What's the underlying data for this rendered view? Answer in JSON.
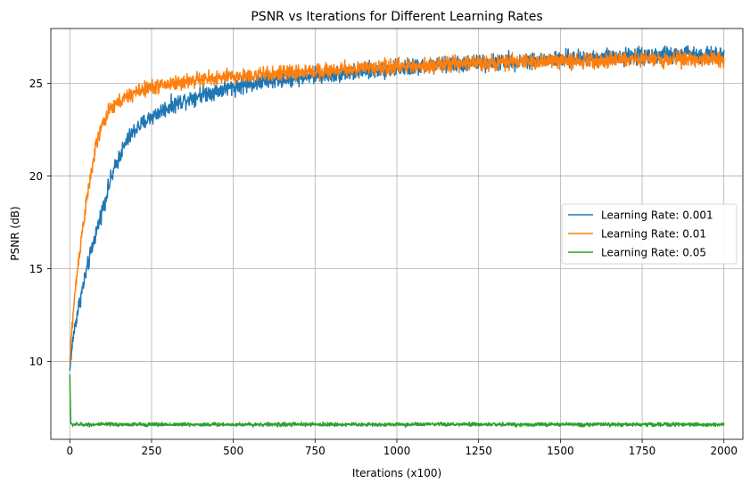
{
  "chart_data": {
    "type": "line",
    "title": "PSNR vs Iterations for Different Learning Rates",
    "xlabel": "Iterations (x100)",
    "ylabel": "PSNR (dB)",
    "xlim": [
      -58,
      2058
    ],
    "ylim": [
      5.8,
      27.95
    ],
    "xticks": [
      0,
      250,
      500,
      750,
      1000,
      1250,
      1500,
      1750,
      2000
    ],
    "yticks": [
      10,
      15,
      20,
      25
    ],
    "grid": true,
    "legend_position": "center-right",
    "series": [
      {
        "name": "Learning Rate: 0.001",
        "color": "#1f77b4",
        "points": [
          [
            0,
            9.5
          ],
          [
            10,
            11.3
          ],
          [
            25,
            12.8
          ],
          [
            50,
            14.8
          ],
          [
            75,
            16.6
          ],
          [
            100,
            18.2
          ],
          [
            125,
            19.8
          ],
          [
            150,
            21.0
          ],
          [
            175,
            21.9
          ],
          [
            200,
            22.5
          ],
          [
            250,
            23.2
          ],
          [
            300,
            23.7
          ],
          [
            350,
            24.1
          ],
          [
            400,
            24.4
          ],
          [
            500,
            24.8
          ],
          [
            600,
            25.1
          ],
          [
            750,
            25.4
          ],
          [
            1000,
            25.8
          ],
          [
            1250,
            26.1
          ],
          [
            1500,
            26.3
          ],
          [
            1750,
            26.5
          ],
          [
            2000,
            26.6
          ]
        ],
        "noise": 0.22
      },
      {
        "name": "Learning Rate: 0.01",
        "color": "#ff7f0e",
        "points": [
          [
            0,
            9.9
          ],
          [
            5,
            11.5
          ],
          [
            15,
            13.5
          ],
          [
            25,
            15.2
          ],
          [
            40,
            17.3
          ],
          [
            60,
            19.6
          ],
          [
            80,
            21.6
          ],
          [
            100,
            22.8
          ],
          [
            125,
            23.6
          ],
          [
            150,
            24.0
          ],
          [
            200,
            24.5
          ],
          [
            250,
            24.8
          ],
          [
            300,
            24.95
          ],
          [
            400,
            25.2
          ],
          [
            500,
            25.35
          ],
          [
            750,
            25.65
          ],
          [
            1000,
            25.9
          ],
          [
            1250,
            26.1
          ],
          [
            1500,
            26.2
          ],
          [
            1750,
            26.3
          ],
          [
            2000,
            26.3
          ]
        ],
        "noise": 0.2
      },
      {
        "name": "Learning Rate: 0.05",
        "color": "#2ca02c",
        "points": [
          [
            0,
            9.3
          ],
          [
            3,
            6.6
          ],
          [
            2000,
            6.6
          ]
        ],
        "noise": 0.05
      }
    ]
  }
}
